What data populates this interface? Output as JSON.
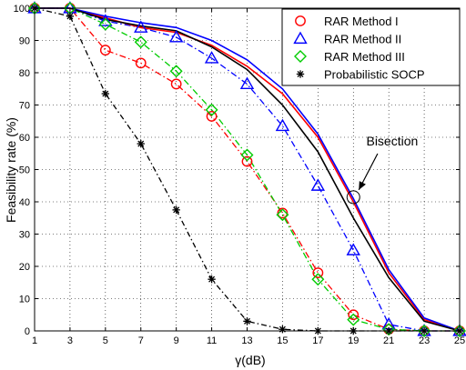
{
  "chart_data": {
    "type": "line",
    "xlabel": "γ(dB)",
    "ylabel": "Feasibility rate (%)",
    "x": [
      1,
      3,
      5,
      7,
      9,
      11,
      13,
      15,
      17,
      19,
      21,
      23,
      25
    ],
    "xlim": [
      1,
      25
    ],
    "ylim": [
      0,
      100
    ],
    "x_ticks": [
      1,
      3,
      5,
      7,
      9,
      11,
      13,
      15,
      17,
      19,
      21,
      23,
      25
    ],
    "y_ticks": [
      0,
      10,
      20,
      30,
      40,
      50,
      60,
      70,
      80,
      90,
      100
    ],
    "grid": true,
    "legend_position": "top-right",
    "series": [
      {
        "name": "RAR Method I",
        "marker": "circle",
        "color": "#ff0000",
        "values": [
          100,
          100,
          87,
          83,
          76.5,
          66.5,
          52.5,
          36.5,
          18,
          5,
          0.5,
          0,
          0
        ]
      },
      {
        "name": "RAR Method II",
        "marker": "triangle",
        "color": "#0000ff",
        "values": [
          100,
          100,
          96,
          94,
          91,
          84.5,
          76.5,
          63.5,
          45,
          25,
          2,
          0,
          0
        ]
      },
      {
        "name": "RAR Method III",
        "marker": "diamond",
        "color": "#00cc00",
        "values": [
          100,
          100,
          95,
          89.5,
          80.5,
          68.5,
          54.5,
          36,
          16,
          3.5,
          0.5,
          0,
          0
        ]
      },
      {
        "name": "Probabilistic SOCP",
        "marker": "star",
        "color": "#000000",
        "values": [
          100,
          97.5,
          73.5,
          58,
          37.5,
          16,
          3,
          0.5,
          0,
          0,
          0,
          0,
          0
        ]
      },
      {
        "name": "",
        "role": "solid-red",
        "color": "#ff0000",
        "values": [
          100,
          100,
          97,
          94,
          92.5,
          88.5,
          82,
          73.5,
          60,
          40,
          18,
          3.5,
          0
        ]
      },
      {
        "name": "",
        "role": "solid-blue",
        "color": "#0000ff",
        "values": [
          100,
          100,
          97.5,
          95.5,
          94,
          90,
          84,
          75,
          61,
          41,
          19,
          4,
          0
        ]
      },
      {
        "name": "",
        "role": "solid-black",
        "color": "#000000",
        "values": [
          100,
          100,
          96.5,
          94.5,
          93,
          88,
          81,
          70,
          55.5,
          35,
          16.5,
          3,
          0
        ]
      }
    ],
    "annotation": {
      "text": "Bisection",
      "points_to": {
        "x": 19,
        "y": 42
      },
      "text_at": {
        "x": 21.5,
        "y": 55.5
      }
    }
  }
}
